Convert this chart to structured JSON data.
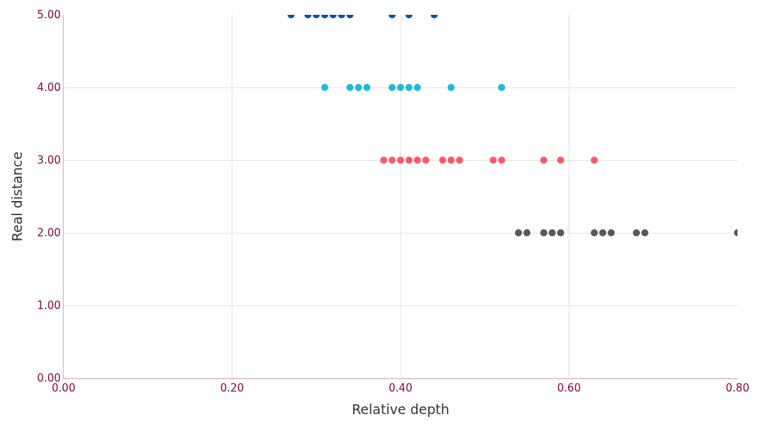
{
  "chart_data": {
    "type": "scatter",
    "xlabel": "Relative depth",
    "ylabel": "Real distance",
    "marker": "circle",
    "grid": true,
    "legend": false,
    "xlim": [
      0,
      0.8
    ],
    "xticks": [
      {
        "value": 0,
        "label": "0.00"
      },
      {
        "value": 0.2,
        "label": "0.20"
      },
      {
        "value": 0.4,
        "label": "0.40"
      },
      {
        "value": 0.6,
        "label": "0.60"
      },
      {
        "value": 0.8,
        "label": "0.80"
      }
    ],
    "ylim": [
      0,
      5
    ],
    "yticks": [
      {
        "value": 0,
        "label": "0.00"
      },
      {
        "value": 1,
        "label": "1.00"
      },
      {
        "value": 2,
        "label": "2.00"
      },
      {
        "value": 3,
        "label": "3.00"
      },
      {
        "value": 4,
        "label": "4.00"
      },
      {
        "value": 5,
        "label": "5.00"
      }
    ],
    "series": [
      {
        "color": "#0b4fb0",
        "x": [
          0.27,
          0.29,
          0.3,
          0.31,
          0.32,
          0.33,
          0.34,
          0.39,
          0.41,
          0.44
        ],
        "values": [
          5,
          5,
          5,
          5,
          5,
          5,
          5,
          5,
          5,
          5
        ]
      },
      {
        "color": "#1cbcd8",
        "x": [
          0.31,
          0.34,
          0.35,
          0.36,
          0.39,
          0.4,
          0.41,
          0.42,
          0.46,
          0.52
        ],
        "values": [
          4,
          4,
          4,
          4,
          4,
          4,
          4,
          4,
          4,
          4
        ]
      },
      {
        "color": "#ff5a6a",
        "x": [
          0.38,
          0.39,
          0.4,
          0.41,
          0.42,
          0.43,
          0.45,
          0.46,
          0.47,
          0.51,
          0.52,
          0.57,
          0.59,
          0.63
        ],
        "values": [
          3,
          3,
          3,
          3,
          3,
          3,
          3,
          3,
          3,
          3,
          3,
          3,
          3,
          3
        ]
      },
      {
        "color": "#595959",
        "x": [
          0.54,
          0.55,
          0.57,
          0.58,
          0.59,
          0.63,
          0.64,
          0.65,
          0.68,
          0.69,
          0.8
        ],
        "values": [
          2,
          2,
          2,
          2,
          2,
          2,
          2,
          2,
          2,
          2,
          2
        ]
      }
    ]
  }
}
